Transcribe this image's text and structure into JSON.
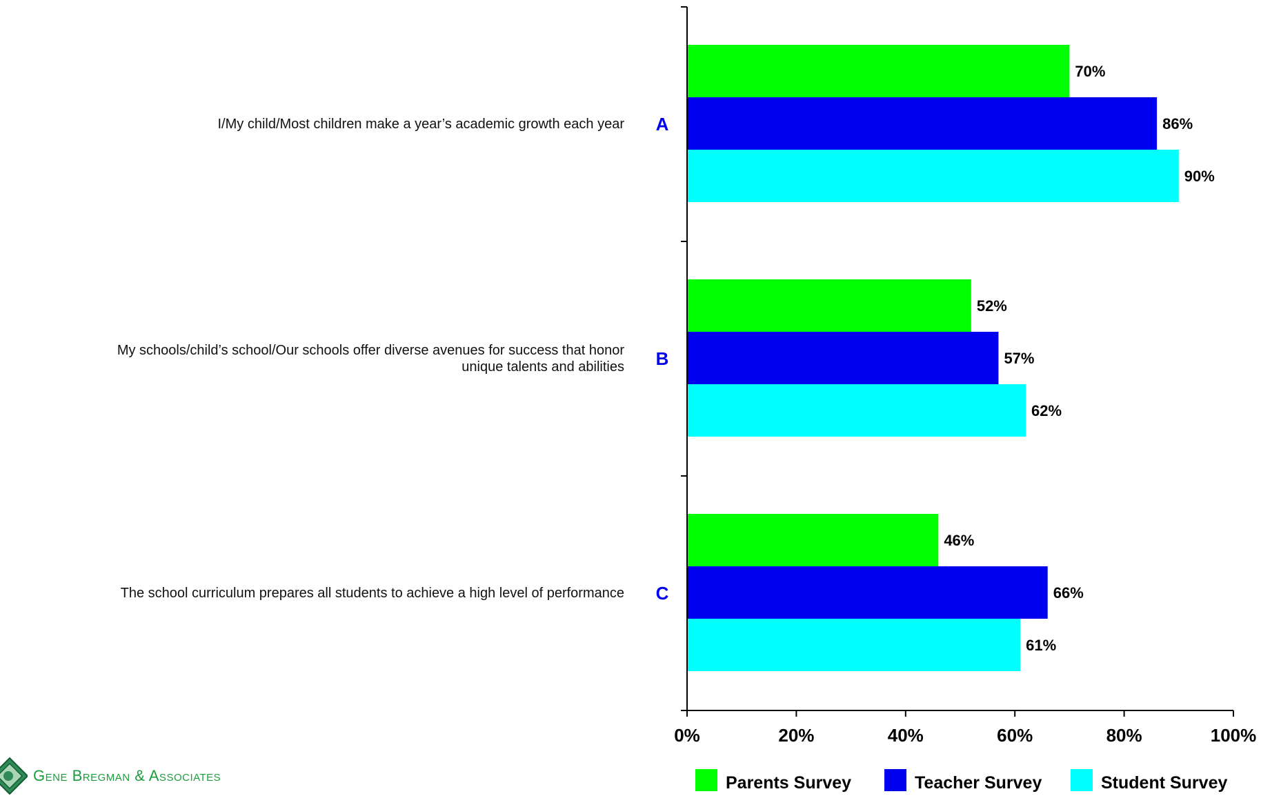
{
  "colors": {
    "parents": "#00ff00",
    "teacher": "#0000ee",
    "student": "#00ffff",
    "letter": "#0000ee",
    "axis": "#000000",
    "brand": "#1a9e3c"
  },
  "brand": {
    "name": "Gene Bregman & Associates",
    "logo_icon": "diamond-seal-icon"
  },
  "chart_data": {
    "type": "bar",
    "orientation": "horizontal",
    "title": "",
    "xlabel": "",
    "ylabel": "",
    "xlim": [
      0,
      100
    ],
    "x_ticks": [
      "0%",
      "20%",
      "40%",
      "60%",
      "80%",
      "100%"
    ],
    "grid": false,
    "legend_position": "bottom",
    "categories": [
      {
        "letter": "A",
        "text": [
          "I/My child/Most children make a year’s academic growth each year"
        ]
      },
      {
        "letter": "B",
        "text": [
          "My schools/child’s school/Our schools offer diverse avenues for success that honor",
          "unique talents and abilities"
        ]
      },
      {
        "letter": "C",
        "text": [
          "The school curriculum prepares all students to achieve a high level of performance"
        ]
      }
    ],
    "series": [
      {
        "name": "Parents Survey",
        "color": "#00ff00",
        "values": [
          70,
          52,
          46
        ],
        "labels": [
          "70%",
          "52%",
          "46%"
        ]
      },
      {
        "name": "Teacher Survey",
        "color": "#0000ee",
        "values": [
          86,
          57,
          66
        ],
        "labels": [
          "86%",
          "57%",
          "66%"
        ]
      },
      {
        "name": "Student Survey",
        "color": "#00ffff",
        "values": [
          90,
          62,
          61
        ],
        "labels": [
          "90%",
          "62%",
          "61%"
        ]
      }
    ]
  }
}
